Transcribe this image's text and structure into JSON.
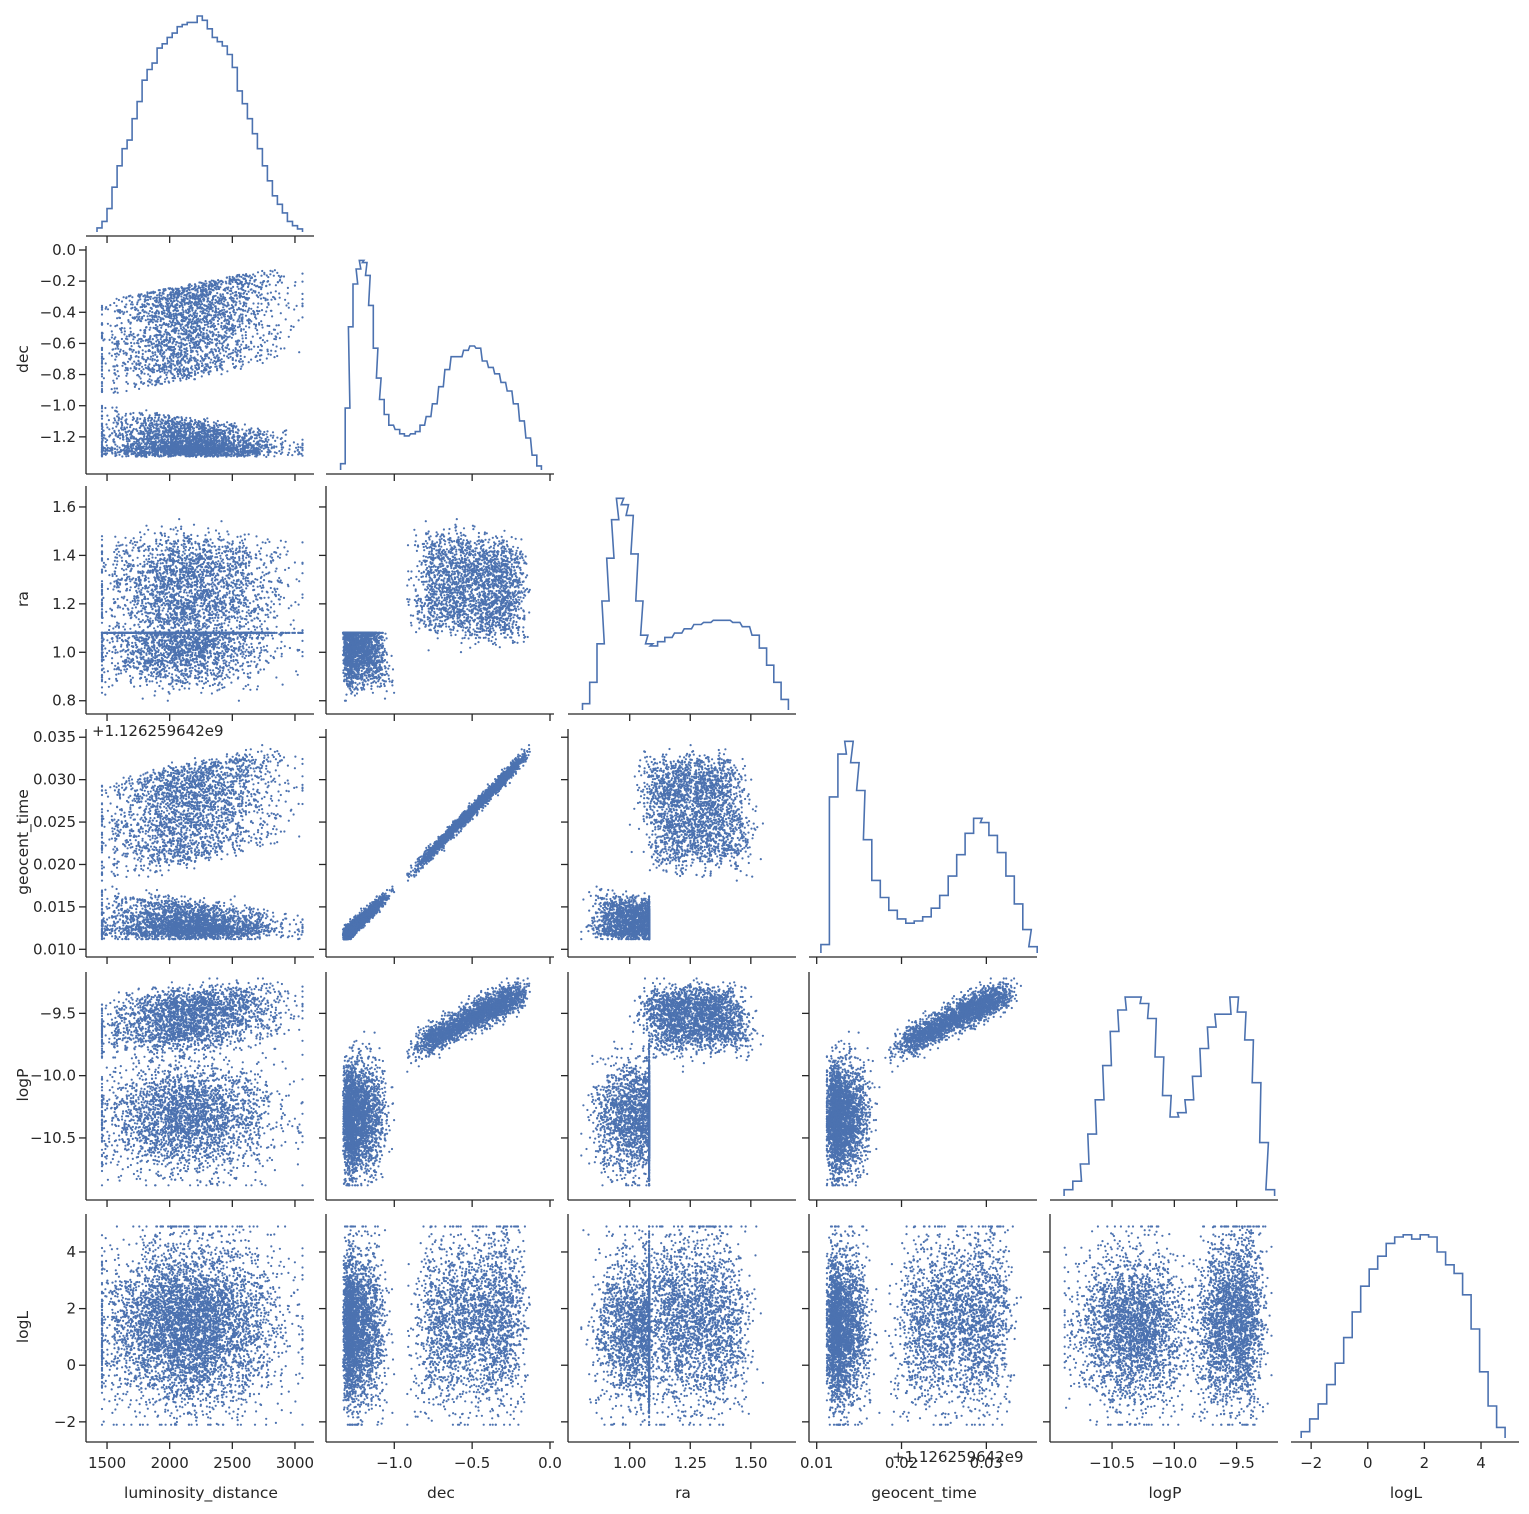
{
  "chart_data": {
    "type": "scatter",
    "layout": "corner-pairplot",
    "color": "#4c72b0",
    "variables": [
      "luminosity_distance",
      "dec",
      "ra",
      "geocent_time",
      "logP",
      "logL"
    ],
    "ranges": {
      "luminosity_distance": [
        1380,
        3120
      ],
      "dec": [
        -1.4,
        0.0
      ],
      "ra": [
        0.77,
        1.67
      ],
      "geocent_time": [
        0.0098,
        0.0355
      ],
      "logP": [
        -10.95,
        -9.2
      ],
      "logL": [
        -2.5,
        5.2
      ]
    },
    "ticks": {
      "luminosity_distance": [
        1500,
        2000,
        2500,
        3000
      ],
      "dec": [
        -1.0,
        -0.5,
        0.0
      ],
      "ra": [
        1.0,
        1.25,
        1.5
      ],
      "geocent_time": [
        0.01,
        0.02,
        0.03
      ],
      "logP": [
        -10.5,
        -10.0,
        -9.5
      ],
      "logL": [
        -2,
        0,
        2,
        4
      ]
    },
    "x_tick_labels": {
      "luminosity_distance": [
        "1500",
        "2000",
        "2500",
        "3000"
      ],
      "dec": [
        "−1.0",
        "−0.5",
        "0.0"
      ],
      "ra": [
        "1.00",
        "1.25",
        "1.50"
      ],
      "geocent_time": [
        "0.01",
        "0.02",
        "0.03"
      ],
      "logP": [
        "−10.5",
        "−10.0",
        "−9.5"
      ],
      "logL": [
        "−2",
        "0",
        "2",
        "4"
      ]
    },
    "y_ticks": {
      "dec": [
        -1.2,
        -1.0,
        -0.8,
        -0.6,
        -0.4,
        -0.2,
        0.0
      ],
      "ra": [
        0.8,
        1.0,
        1.2,
        1.4,
        1.6
      ],
      "geocent_time": [
        0.01,
        0.015,
        0.02,
        0.025,
        0.03,
        0.035
      ],
      "logP": [
        -10.5,
        -10.0,
        -9.5
      ],
      "logL": [
        -2,
        0,
        2,
        4
      ]
    },
    "y_tick_labels": {
      "dec": [
        "−1.2",
        "−1.0",
        "−0.8",
        "−0.6",
        "−0.4",
        "−0.2",
        "0.0"
      ],
      "ra": [
        "0.8",
        "1.0",
        "1.2",
        "1.4",
        "1.6"
      ],
      "geocent_time": [
        "0.010",
        "0.015",
        "0.020",
        "0.025",
        "0.030",
        "0.035"
      ],
      "logP": [
        "−10.5",
        "−10.0",
        "−9.5"
      ],
      "logL": [
        "−2",
        "0",
        "2",
        "4"
      ]
    },
    "x_labels": [
      "luminosity_distance",
      "dec",
      "ra",
      "geocent_time",
      "logP",
      "logL"
    ],
    "y_labels": [
      "",
      "dec",
      "ra",
      "geocent_time",
      "logP",
      "logL"
    ],
    "offset_text": "+1.126259642e9",
    "offset_text_repeat": "+1.126259642e9",
    "histograms": {
      "luminosity_distance": [
        [
          1440,
          0.01
        ],
        [
          1480,
          0.04
        ],
        [
          1520,
          0.1
        ],
        [
          1560,
          0.2
        ],
        [
          1600,
          0.3
        ],
        [
          1640,
          0.38
        ],
        [
          1680,
          0.42
        ],
        [
          1720,
          0.52
        ],
        [
          1760,
          0.6
        ],
        [
          1800,
          0.7
        ],
        [
          1840,
          0.75
        ],
        [
          1880,
          0.78
        ],
        [
          1920,
          0.85
        ],
        [
          1960,
          0.87
        ],
        [
          2000,
          0.9
        ],
        [
          2040,
          0.92
        ],
        [
          2080,
          0.95
        ],
        [
          2120,
          0.96
        ],
        [
          2160,
          0.97
        ],
        [
          2200,
          0.97
        ],
        [
          2240,
          1.0
        ],
        [
          2280,
          0.98
        ],
        [
          2320,
          0.94
        ],
        [
          2360,
          0.9
        ],
        [
          2400,
          0.88
        ],
        [
          2440,
          0.86
        ],
        [
          2480,
          0.82
        ],
        [
          2520,
          0.76
        ],
        [
          2560,
          0.65
        ],
        [
          2600,
          0.59
        ],
        [
          2640,
          0.52
        ],
        [
          2680,
          0.45
        ],
        [
          2720,
          0.38
        ],
        [
          2760,
          0.3
        ],
        [
          2800,
          0.23
        ],
        [
          2840,
          0.16
        ],
        [
          2880,
          0.12
        ],
        [
          2920,
          0.08
        ],
        [
          2960,
          0.04
        ],
        [
          3000,
          0.02
        ],
        [
          3040,
          0.005
        ]
      ],
      "dec": [
        [
          -1.33,
          0.02
        ],
        [
          -1.3,
          0.28
        ],
        [
          -1.28,
          0.66
        ],
        [
          -1.25,
          0.86
        ],
        [
          -1.23,
          0.93
        ],
        [
          -1.21,
          0.97
        ],
        [
          -1.19,
          0.96
        ],
        [
          -1.17,
          0.9
        ],
        [
          -1.15,
          0.76
        ],
        [
          -1.12,
          0.56
        ],
        [
          -1.1,
          0.42
        ],
        [
          -1.08,
          0.32
        ],
        [
          -1.05,
          0.25
        ],
        [
          -1.02,
          0.2
        ],
        [
          -0.98,
          0.18
        ],
        [
          -0.95,
          0.16
        ],
        [
          -0.92,
          0.15
        ],
        [
          -0.88,
          0.16
        ],
        [
          -0.85,
          0.17
        ],
        [
          -0.82,
          0.2
        ],
        [
          -0.78,
          0.24
        ],
        [
          -0.74,
          0.3
        ],
        [
          -0.7,
          0.38
        ],
        [
          -0.66,
          0.46
        ],
        [
          -0.62,
          0.52
        ],
        [
          -0.58,
          0.52
        ],
        [
          -0.54,
          0.55
        ],
        [
          -0.5,
          0.57
        ],
        [
          -0.46,
          0.56
        ],
        [
          -0.42,
          0.5
        ],
        [
          -0.38,
          0.47
        ],
        [
          -0.34,
          0.44
        ],
        [
          -0.3,
          0.4
        ],
        [
          -0.26,
          0.36
        ],
        [
          -0.22,
          0.3
        ],
        [
          -0.18,
          0.22
        ],
        [
          -0.14,
          0.14
        ],
        [
          -0.1,
          0.06
        ],
        [
          -0.07,
          0.01
        ]
      ],
      "ra": [
        [
          0.82,
          0.02
        ],
        [
          0.85,
          0.12
        ],
        [
          0.88,
          0.3
        ],
        [
          0.9,
          0.5
        ],
        [
          0.92,
          0.7
        ],
        [
          0.94,
          0.88
        ],
        [
          0.96,
          0.98
        ],
        [
          0.98,
          0.95
        ],
        [
          1.0,
          0.9
        ],
        [
          1.02,
          0.72
        ],
        [
          1.04,
          0.5
        ],
        [
          1.06,
          0.34
        ],
        [
          1.08,
          0.3
        ],
        [
          1.1,
          0.29
        ],
        [
          1.13,
          0.31
        ],
        [
          1.16,
          0.33
        ],
        [
          1.2,
          0.35
        ],
        [
          1.24,
          0.37
        ],
        [
          1.28,
          0.39
        ],
        [
          1.32,
          0.4
        ],
        [
          1.36,
          0.41
        ],
        [
          1.4,
          0.41
        ],
        [
          1.44,
          0.4
        ],
        [
          1.48,
          0.38
        ],
        [
          1.52,
          0.34
        ],
        [
          1.55,
          0.28
        ],
        [
          1.58,
          0.2
        ],
        [
          1.61,
          0.12
        ],
        [
          1.64,
          0.04
        ]
      ],
      "geocent_time": [
        [
          0.011,
          0.03
        ],
        [
          0.012,
          0.72
        ],
        [
          0.013,
          0.92
        ],
        [
          0.0138,
          0.98
        ],
        [
          0.0145,
          0.88
        ],
        [
          0.0152,
          0.75
        ],
        [
          0.016,
          0.52
        ],
        [
          0.017,
          0.33
        ],
        [
          0.018,
          0.25
        ],
        [
          0.019,
          0.19
        ],
        [
          0.02,
          0.15
        ],
        [
          0.021,
          0.13
        ],
        [
          0.022,
          0.14
        ],
        [
          0.023,
          0.16
        ],
        [
          0.024,
          0.2
        ],
        [
          0.025,
          0.26
        ],
        [
          0.026,
          0.35
        ],
        [
          0.027,
          0.45
        ],
        [
          0.028,
          0.55
        ],
        [
          0.029,
          0.62
        ],
        [
          0.0298,
          0.6
        ],
        [
          0.0308,
          0.54
        ],
        [
          0.0318,
          0.46
        ],
        [
          0.0328,
          0.35
        ],
        [
          0.0338,
          0.22
        ],
        [
          0.0348,
          0.1
        ],
        [
          0.0355,
          0.02
        ]
      ],
      "logP": [
        [
          -10.85,
          0.02
        ],
        [
          -10.78,
          0.06
        ],
        [
          -10.72,
          0.14
        ],
        [
          -10.66,
          0.28
        ],
        [
          -10.6,
          0.44
        ],
        [
          -10.54,
          0.6
        ],
        [
          -10.48,
          0.76
        ],
        [
          -10.42,
          0.86
        ],
        [
          -10.36,
          0.92
        ],
        [
          -10.3,
          0.92
        ],
        [
          -10.24,
          0.89
        ],
        [
          -10.18,
          0.82
        ],
        [
          -10.12,
          0.64
        ],
        [
          -10.06,
          0.46
        ],
        [
          -10.0,
          0.36
        ],
        [
          -9.94,
          0.38
        ],
        [
          -9.88,
          0.44
        ],
        [
          -9.82,
          0.55
        ],
        [
          -9.76,
          0.68
        ],
        [
          -9.7,
          0.78
        ],
        [
          -9.64,
          0.84
        ],
        [
          -9.58,
          0.84
        ],
        [
          -9.52,
          0.92
        ],
        [
          -9.46,
          0.85
        ],
        [
          -9.4,
          0.72
        ],
        [
          -9.34,
          0.52
        ],
        [
          -9.28,
          0.24
        ],
        [
          -9.23,
          0.02
        ]
      ],
      "logL": [
        [
          -2.2,
          0.02
        ],
        [
          -1.9,
          0.08
        ],
        [
          -1.6,
          0.15
        ],
        [
          -1.3,
          0.24
        ],
        [
          -1.0,
          0.34
        ],
        [
          -0.7,
          0.46
        ],
        [
          -0.4,
          0.58
        ],
        [
          -0.1,
          0.7
        ],
        [
          0.2,
          0.78
        ],
        [
          0.5,
          0.84
        ],
        [
          0.8,
          0.9
        ],
        [
          1.1,
          0.93
        ],
        [
          1.4,
          0.94
        ],
        [
          1.7,
          0.92
        ],
        [
          2.0,
          0.94
        ],
        [
          2.3,
          0.93
        ],
        [
          2.6,
          0.86
        ],
        [
          2.9,
          0.8
        ],
        [
          3.2,
          0.76
        ],
        [
          3.5,
          0.66
        ],
        [
          3.8,
          0.5
        ],
        [
          4.1,
          0.3
        ],
        [
          4.4,
          0.14
        ],
        [
          4.7,
          0.04
        ]
      ]
    }
  }
}
